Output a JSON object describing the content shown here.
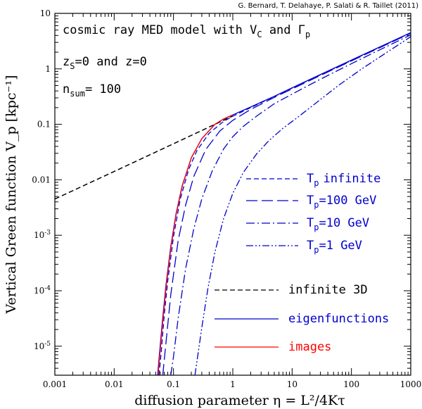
{
  "credit": "G. Bernard, T. Delahaye, P. Salati & R. Taillet (2011)",
  "chart_data": {
    "type": "line",
    "xscale": "log",
    "yscale": "log",
    "xlim": [
      0.001,
      1000
    ],
    "ylim": [
      3e-06,
      10
    ],
    "xlabel": "diffusion parameter η = L²/4Kτ",
    "ylabel": "Vertical Green function V_p [kpc⁻¹]",
    "x_ticks": [
      {
        "value": 0.001,
        "label": "0.001"
      },
      {
        "value": 0.01,
        "label": "0.01"
      },
      {
        "value": 0.1,
        "label": "0.1"
      },
      {
        "value": 1,
        "label": "1"
      },
      {
        "value": 10,
        "label": "10"
      },
      {
        "value": 100,
        "label": "100"
      },
      {
        "value": 1000,
        "label": "1000"
      }
    ],
    "y_ticks": [
      {
        "value": 10,
        "label": "10",
        "sup": ""
      },
      {
        "value": 1,
        "label": "1",
        "sup": ""
      },
      {
        "value": 0.1,
        "label": "0.1",
        "sup": ""
      },
      {
        "value": 0.01,
        "label": "0.01",
        "sup": ""
      },
      {
        "value": 0.001,
        "label": "10",
        "sup": "-3"
      },
      {
        "value": 0.0001,
        "label": "10",
        "sup": "-4"
      },
      {
        "value": 1e-05,
        "label": "10",
        "sup": "-5"
      }
    ],
    "annotations": [
      {
        "text": "cosmic ray MED model with V",
        "sub": "C",
        "text2": " and Γ",
        "sub2": "p"
      },
      {
        "text": "z",
        "sub": "S",
        "text2": "=0 and z=0",
        "sub2": ""
      },
      {
        "text": "n",
        "sub": "sum",
        "text2": "= 100",
        "sub2": ""
      }
    ],
    "series": [
      {
        "name": "infinite 3D",
        "legend": "infinite 3D",
        "color": "#000000",
        "dash": "7,4",
        "width": 1.5,
        "x": [
          0.001,
          0.01,
          0.1,
          0.5,
          1.0
        ],
        "y": [
          0.0045,
          0.0141,
          0.0446,
          0.1,
          0.141
        ]
      },
      {
        "name": "T_p infinite",
        "legend": "infinite",
        "color": "#0000cc",
        "dash": "7,4",
        "width": 1.3,
        "x": [
          0.057,
          0.062,
          0.07,
          0.08,
          0.1,
          0.13,
          0.18,
          0.25,
          0.4,
          0.7,
          1.0,
          2,
          5,
          10,
          30,
          100,
          300,
          1000
        ],
        "y": [
          3e-06,
          7.8e-06,
          3.75e-05,
          0.00015,
          0.00095,
          0.0045,
          0.0153,
          0.034,
          0.069,
          0.113,
          0.14,
          0.2,
          0.317,
          0.45,
          0.78,
          1.42,
          2.45,
          4.47
        ]
      },
      {
        "name": "T_p=100 GeV",
        "legend": "=100 GeV",
        "color": "#0000cc",
        "dash": "16,6",
        "width": 1.3,
        "x": [
          0.066,
          0.075,
          0.09,
          0.12,
          0.16,
          0.22,
          0.35,
          0.6,
          1.0,
          2,
          5,
          10,
          30,
          100,
          300,
          1000
        ],
        "y": [
          3e-06,
          1.2e-05,
          8.5e-05,
          0.0008,
          0.0035,
          0.0115,
          0.035,
          0.075,
          0.118,
          0.185,
          0.305,
          0.435,
          0.76,
          1.39,
          2.4,
          4.4
        ]
      },
      {
        "name": "T_p=10 GeV",
        "legend": "=10 GeV",
        "color": "#0000cc",
        "dash": "12,4,2,4",
        "width": 1.3,
        "x": [
          0.09,
          0.1,
          0.12,
          0.16,
          0.22,
          0.3,
          0.45,
          0.7,
          1.0,
          1.5,
          2.5,
          5,
          10,
          30,
          100,
          300,
          1000
        ],
        "y": [
          3e-06,
          6.5e-06,
          3.2e-05,
          0.00025,
          0.0013,
          0.0045,
          0.0145,
          0.036,
          0.06,
          0.092,
          0.14,
          0.235,
          0.35,
          0.65,
          1.24,
          2.2,
          4.1
        ]
      },
      {
        "name": "T_p=1 GeV",
        "legend": "=1 GeV",
        "color": "#0000cc",
        "dash": "10,3,2,3,2,3",
        "width": 1.3,
        "x": [
          0.23,
          0.26,
          0.3,
          0.38,
          0.5,
          0.7,
          1.0,
          1.5,
          2.5,
          4,
          7,
          12,
          25,
          60,
          150,
          400,
          1000
        ],
        "y": [
          3e-06,
          7.5e-06,
          2.15e-05,
          0.00011,
          0.0005,
          0.002,
          0.0057,
          0.0135,
          0.029,
          0.05,
          0.085,
          0.13,
          0.24,
          0.5,
          1.0,
          2.0,
          3.8
        ]
      },
      {
        "name": "eigenfunctions",
        "legend": "eigenfunctions",
        "color": "#0000cc",
        "dash": "",
        "width": 1.3,
        "x": [
          0.054,
          0.058,
          0.065,
          0.075,
          0.09,
          0.11,
          0.14,
          0.2,
          0.3,
          0.5,
          0.7,
          1.0,
          2,
          5,
          10,
          30,
          100,
          300,
          1000
        ],
        "y": [
          3e-06,
          7.2e-06,
          2.85e-05,
          0.00013,
          0.00063,
          0.0024,
          0.0078,
          0.025,
          0.055,
          0.1,
          0.125,
          0.148,
          0.205,
          0.32,
          0.455,
          0.79,
          1.44,
          2.48,
          4.5
        ]
      },
      {
        "name": "images",
        "legend": "images",
        "color": "#ff0000",
        "dash": "",
        "width": 1.3,
        "x": [
          0.055,
          0.059,
          0.066,
          0.076,
          0.091,
          0.111,
          0.141,
          0.2,
          0.3,
          0.5,
          0.7,
          1.0
        ],
        "y": [
          3e-06,
          7.2e-06,
          2.85e-05,
          0.00013,
          0.00063,
          0.0024,
          0.0078,
          0.025,
          0.055,
          0.1,
          0.125,
          0.148
        ]
      }
    ],
    "legend_groups": [
      {
        "items": [
          "T_p infinite",
          "T_p=100 GeV",
          "T_p=10 GeV",
          "T_p=1 GeV"
        ],
        "prefix": "T",
        "prefix_sub": "p",
        "text_color": "#0000cc"
      },
      {
        "items": [
          "infinite 3D",
          "eigenfunctions",
          "images"
        ],
        "prefix": "",
        "prefix_sub": "",
        "text_colors": [
          "#000000",
          "#0000cc",
          "#ff0000"
        ]
      }
    ]
  }
}
